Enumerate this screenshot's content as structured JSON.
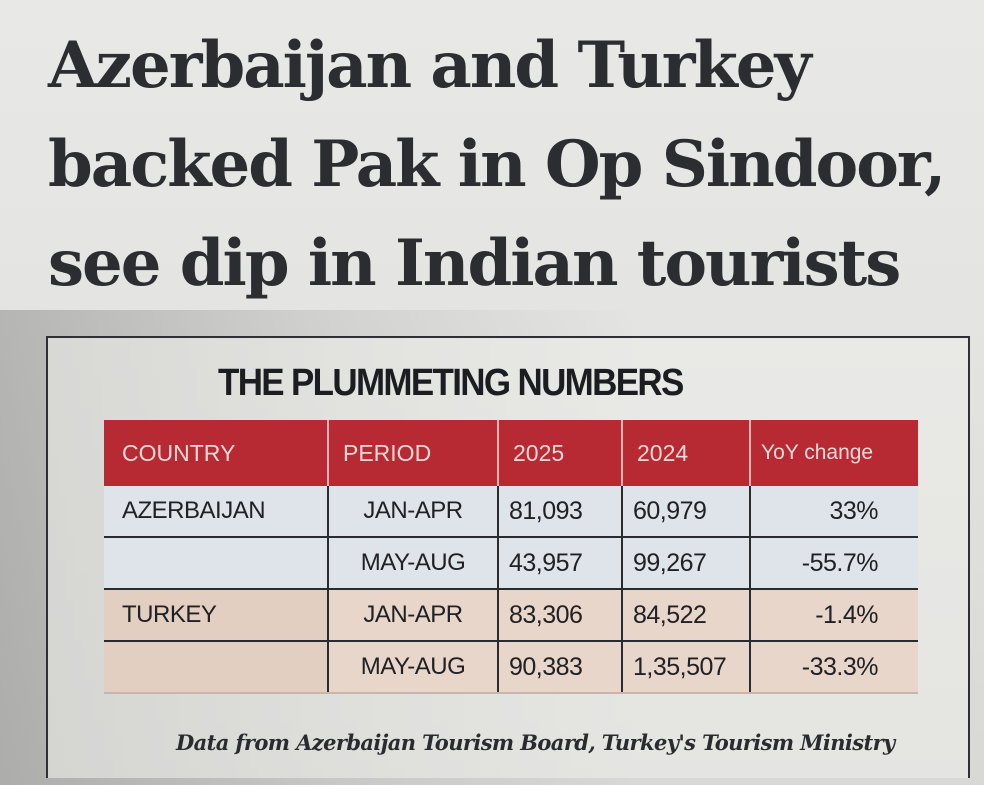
{
  "headline": {
    "lines": [
      "Azerbaijan and Turkey",
      "backed Pak in Op Sindoor,",
      "see dip in Indian tourists"
    ]
  },
  "table_box": {
    "title": "THE PLUMMETING NUMBERS",
    "headers": [
      "COUNTRY",
      "PERIOD",
      "2025",
      "2024",
      "YoY change"
    ],
    "rows": [
      [
        "AZERBAIJAN",
        "JAN-APR",
        "81,093",
        "60,979",
        "33%"
      ],
      [
        "",
        "MAY-AUG",
        "43,957",
        "99,267",
        "-55.7%"
      ],
      [
        "TURKEY",
        "JAN-APR",
        "83,306",
        "84,522",
        "-1.4%"
      ],
      [
        "",
        "MAY-AUG",
        "90,383",
        "1,35,507",
        "-33.3%"
      ]
    ],
    "source": "Data from Azerbaijan Tourism Board, Turkey's Tourism Ministry"
  },
  "colors": {
    "header_bg": "#b72a33",
    "azerbaijan_rows": "#dfe4ea",
    "turkey_rows": "#e8d6ca"
  }
}
